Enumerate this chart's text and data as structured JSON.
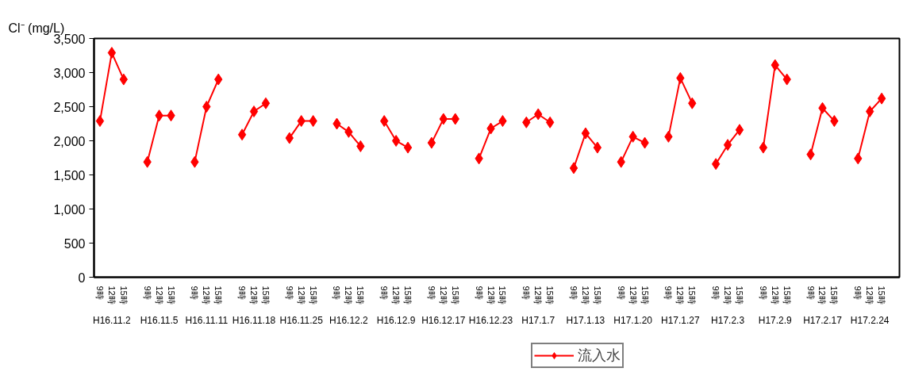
{
  "chart_data": {
    "type": "line",
    "ylabel": "Cl⁻ (mg/L)",
    "categories": [
      "9時",
      "12時",
      "15時",
      null,
      "9時",
      "12時",
      "15時",
      null,
      "9時",
      "12時",
      "15時",
      null,
      "9時",
      "12時",
      "15時",
      null,
      "9時",
      "12時",
      "15時",
      null,
      "9時",
      "12時",
      "15時",
      null,
      "9時",
      "12時",
      "15時",
      null,
      "9時",
      "12時",
      "15時",
      null,
      "9時",
      "12時",
      "15時",
      null,
      "9時",
      "12時",
      "15時",
      null,
      "9時",
      "12時",
      "15時",
      null,
      "9時",
      "12時",
      "15時",
      null,
      "9時",
      "12時",
      "15時",
      null,
      "9時",
      "12時",
      "15時",
      null,
      "9時",
      "12時",
      "15時",
      null,
      "9時",
      "12時",
      "15時",
      null,
      "9時",
      "12時",
      "15時",
      null
    ],
    "annotations": [
      "H16.11.2",
      "H16.11.5",
      "H16.11.11",
      "H16.11.18",
      "H16.11.25",
      "H16.12.2",
      "H16.12.9",
      "H16.12.17",
      "H16.12.23",
      "H17.1.7",
      "H17.1.13",
      "H17.1.20",
      "H17.1.27",
      "H17.2.3",
      "H17.2.9",
      "H17.2.17",
      "H17.2.24"
    ],
    "series": [
      {
        "name": "流入水",
        "color": "#ff0000",
        "values": [
          2290,
          3290,
          2900,
          null,
          1690,
          2370,
          2370,
          null,
          1690,
          2500,
          2900,
          null,
          2090,
          2430,
          2550,
          null,
          2040,
          2290,
          2290,
          null,
          2250,
          2130,
          1920,
          null,
          2290,
          2000,
          1900,
          null,
          1970,
          2320,
          2320,
          null,
          1740,
          2180,
          2290,
          null,
          2270,
          2390,
          2270,
          null,
          1600,
          2110,
          1900,
          null,
          1690,
          2060,
          1970,
          null,
          2060,
          2920,
          2550,
          null,
          1660,
          1940,
          2160,
          null,
          1900,
          3110,
          2900,
          null,
          1800,
          2480,
          2290,
          null,
          1740,
          2430,
          2620,
          null
        ]
      }
    ],
    "ylim": [
      0,
      3500
    ],
    "yticks": [
      {
        "value": 0,
        "label": "0"
      },
      {
        "value": 500,
        "label": "500"
      },
      {
        "value": 1000,
        "label": "1,000"
      },
      {
        "value": 1500,
        "label": "1,500"
      },
      {
        "value": 2000,
        "label": "2,000"
      },
      {
        "value": 2500,
        "label": "2,500"
      },
      {
        "value": 3000,
        "label": "3,000"
      },
      {
        "value": 3500,
        "label": "3,500"
      }
    ],
    "grid": false,
    "legend": "bottom",
    "marker": "diamond",
    "line_style": "solid"
  }
}
